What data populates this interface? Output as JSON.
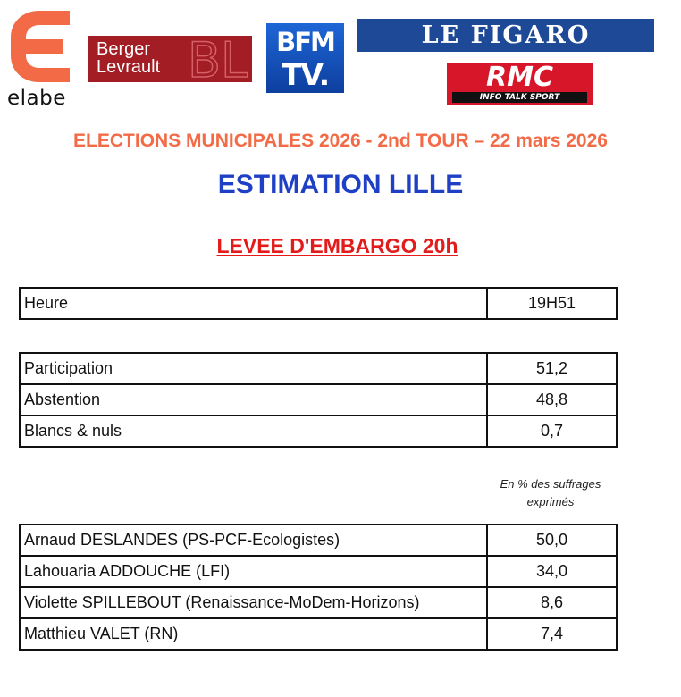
{
  "logos": {
    "elabe": "elabe",
    "berger_line1": "Berger",
    "berger_line2": "Levrault",
    "bfm_top": "BFM",
    "bfm_bottom": "TV.",
    "figaro": "LE FIGARO",
    "rmc": "RMC",
    "rmc_tagline": "INFO TALK SPORT"
  },
  "header": {
    "elections": "ELECTIONS MUNICIPALES 2026 - 2nd TOUR – 22 mars 2026",
    "estimation": "ESTIMATION LILLE",
    "embargo": "LEVEE D'EMBARGO 20h"
  },
  "time_table": [
    {
      "label": "Heure",
      "value": "19H51"
    }
  ],
  "participation_table": [
    {
      "label": "Participation",
      "value": "51,2"
    },
    {
      "label": "Abstention",
      "value": "48,8"
    },
    {
      "label": "Blancs & nuls",
      "value": "0,7"
    }
  ],
  "note": {
    "line1": "En % des suffrages",
    "line2": "exprimés"
  },
  "results_table": [
    {
      "label": "Arnaud DESLANDES (PS-PCF-Ecologistes)",
      "value": "50,0"
    },
    {
      "label": "Lahouaria ADDOUCHE (LFI)",
      "value": "34,0"
    },
    {
      "label": "Violette SPILLEBOUT (Renaissance-MoDem-Horizons)",
      "value": "8,6"
    },
    {
      "label": "Matthieu VALET (RN)",
      "value": "7,4"
    }
  ],
  "colors": {
    "elections_heading": "#f26b46",
    "estimation_heading": "#1f3fc4",
    "embargo_heading": "#e31b1b",
    "elabe_orange": "#f26b46",
    "berger_red": "#a31d24",
    "bfm_blue": "#1e66d6",
    "figaro_blue": "#1d4996",
    "rmc_red": "#d7162a"
  }
}
